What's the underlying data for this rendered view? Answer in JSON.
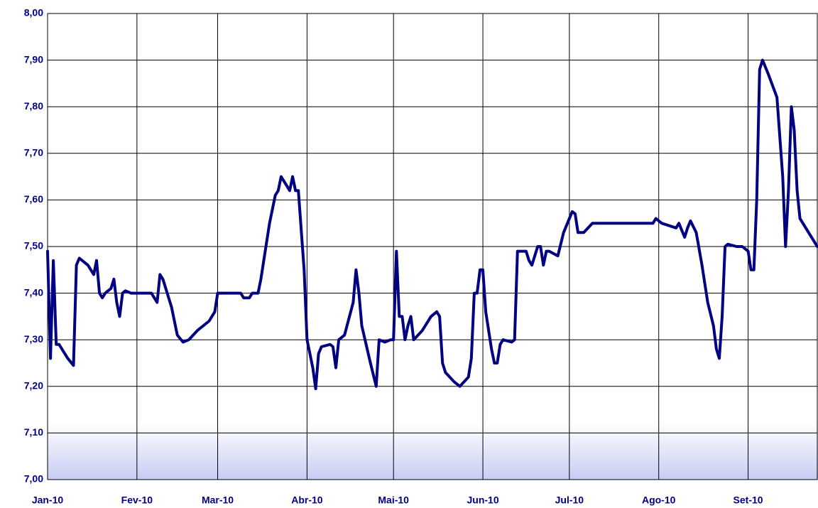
{
  "chart_data": {
    "type": "line",
    "x": [
      0,
      1,
      2,
      3,
      4,
      7,
      9,
      10,
      11,
      14,
      16,
      17,
      18,
      19,
      20,
      22,
      23,
      24,
      25,
      26,
      27,
      29,
      36,
      38,
      39,
      40,
      43,
      45,
      47,
      49,
      52,
      56,
      58,
      59,
      67,
      68,
      70,
      71,
      73,
      74,
      77,
      79,
      80,
      81,
      83,
      84,
      85,
      86,
      87,
      89,
      90,
      92,
      93,
      94,
      95,
      98,
      99,
      100,
      101,
      103,
      106,
      107,
      108,
      109,
      112,
      114,
      115,
      117,
      119,
      120,
      121,
      122,
      123,
      124,
      125,
      126,
      127,
      130,
      133,
      135,
      136,
      137,
      138,
      141,
      143,
      146,
      147,
      148,
      149,
      150,
      151,
      152,
      154,
      155,
      156,
      157,
      158,
      161,
      162,
      163,
      166,
      167,
      168,
      170,
      171,
      172,
      173,
      174,
      177,
      179,
      182,
      183,
      184,
      186,
      189,
      210,
      211,
      213,
      218,
      219,
      221,
      222,
      223,
      225,
      227,
      229,
      231,
      232,
      233,
      234,
      235,
      236,
      239,
      241,
      243,
      244,
      245,
      246,
      247,
      248,
      250,
      253,
      255,
      256,
      257,
      258,
      259,
      260,
      261,
      264,
      267
    ],
    "series": [
      {
        "color": "#000080",
        "values": [
          7.49,
          7.26,
          7.47,
          7.29,
          7.29,
          7.26,
          7.245,
          7.46,
          7.475,
          7.46,
          7.44,
          7.47,
          7.4,
          7.39,
          7.4,
          7.41,
          7.43,
          7.38,
          7.35,
          7.4,
          7.405,
          7.4,
          7.4,
          7.38,
          7.44,
          7.43,
          7.37,
          7.31,
          7.295,
          7.3,
          7.32,
          7.34,
          7.36,
          7.4,
          7.4,
          7.39,
          7.39,
          7.4,
          7.4,
          7.43,
          7.55,
          7.61,
          7.62,
          7.65,
          7.63,
          7.62,
          7.65,
          7.62,
          7.62,
          7.45,
          7.3,
          7.24,
          7.195,
          7.27,
          7.285,
          7.29,
          7.285,
          7.24,
          7.3,
          7.31,
          7.38,
          7.45,
          7.4,
          7.33,
          7.25,
          7.2,
          7.3,
          7.295,
          7.3,
          7.3,
          7.49,
          7.35,
          7.35,
          7.3,
          7.33,
          7.35,
          7.3,
          7.32,
          7.35,
          7.36,
          7.35,
          7.25,
          7.23,
          7.21,
          7.2,
          7.22,
          7.26,
          7.4,
          7.4,
          7.45,
          7.45,
          7.36,
          7.28,
          7.25,
          7.25,
          7.29,
          7.3,
          7.295,
          7.3,
          7.49,
          7.49,
          7.47,
          7.46,
          7.5,
          7.5,
          7.46,
          7.49,
          7.49,
          7.48,
          7.53,
          7.575,
          7.57,
          7.53,
          7.53,
          7.55,
          7.55,
          7.56,
          7.55,
          7.54,
          7.55,
          7.52,
          7.54,
          7.555,
          7.53,
          7.46,
          7.38,
          7.33,
          7.28,
          7.26,
          7.35,
          7.5,
          7.505,
          7.5,
          7.5,
          7.49,
          7.45,
          7.45,
          7.6,
          7.88,
          7.9,
          7.87,
          7.82,
          7.65,
          7.5,
          7.62,
          7.8,
          7.75,
          7.62,
          7.56,
          7.53,
          7.5
        ]
      }
    ],
    "xlim": [
      0,
      267
    ],
    "xticks": [
      {
        "value": 0,
        "label": "Jan-10"
      },
      {
        "value": 31,
        "label": "Fev-10"
      },
      {
        "value": 59,
        "label": "Mar-10"
      },
      {
        "value": 90,
        "label": "Abr-10"
      },
      {
        "value": 120,
        "label": "Mai-10"
      },
      {
        "value": 151,
        "label": "Jun-10"
      },
      {
        "value": 181,
        "label": "Jul-10"
      },
      {
        "value": 212,
        "label": "Ago-10"
      },
      {
        "value": 243,
        "label": "Set-10"
      }
    ],
    "ylim": [
      7.0,
      8.0
    ],
    "yticks": [
      {
        "value": 7.0,
        "label": "7,00"
      },
      {
        "value": 7.1,
        "label": "7,10"
      },
      {
        "value": 7.2,
        "label": "7,20"
      },
      {
        "value": 7.3,
        "label": "7,30"
      },
      {
        "value": 7.4,
        "label": "7,40"
      },
      {
        "value": 7.5,
        "label": "7,50"
      },
      {
        "value": 7.6,
        "label": "7,60"
      },
      {
        "value": 7.7,
        "label": "7,70"
      },
      {
        "value": 7.8,
        "label": "7,80"
      },
      {
        "value": 7.9,
        "label": "7,90"
      },
      {
        "value": 8.0,
        "label": "8,00"
      }
    ],
    "grid": true
  }
}
